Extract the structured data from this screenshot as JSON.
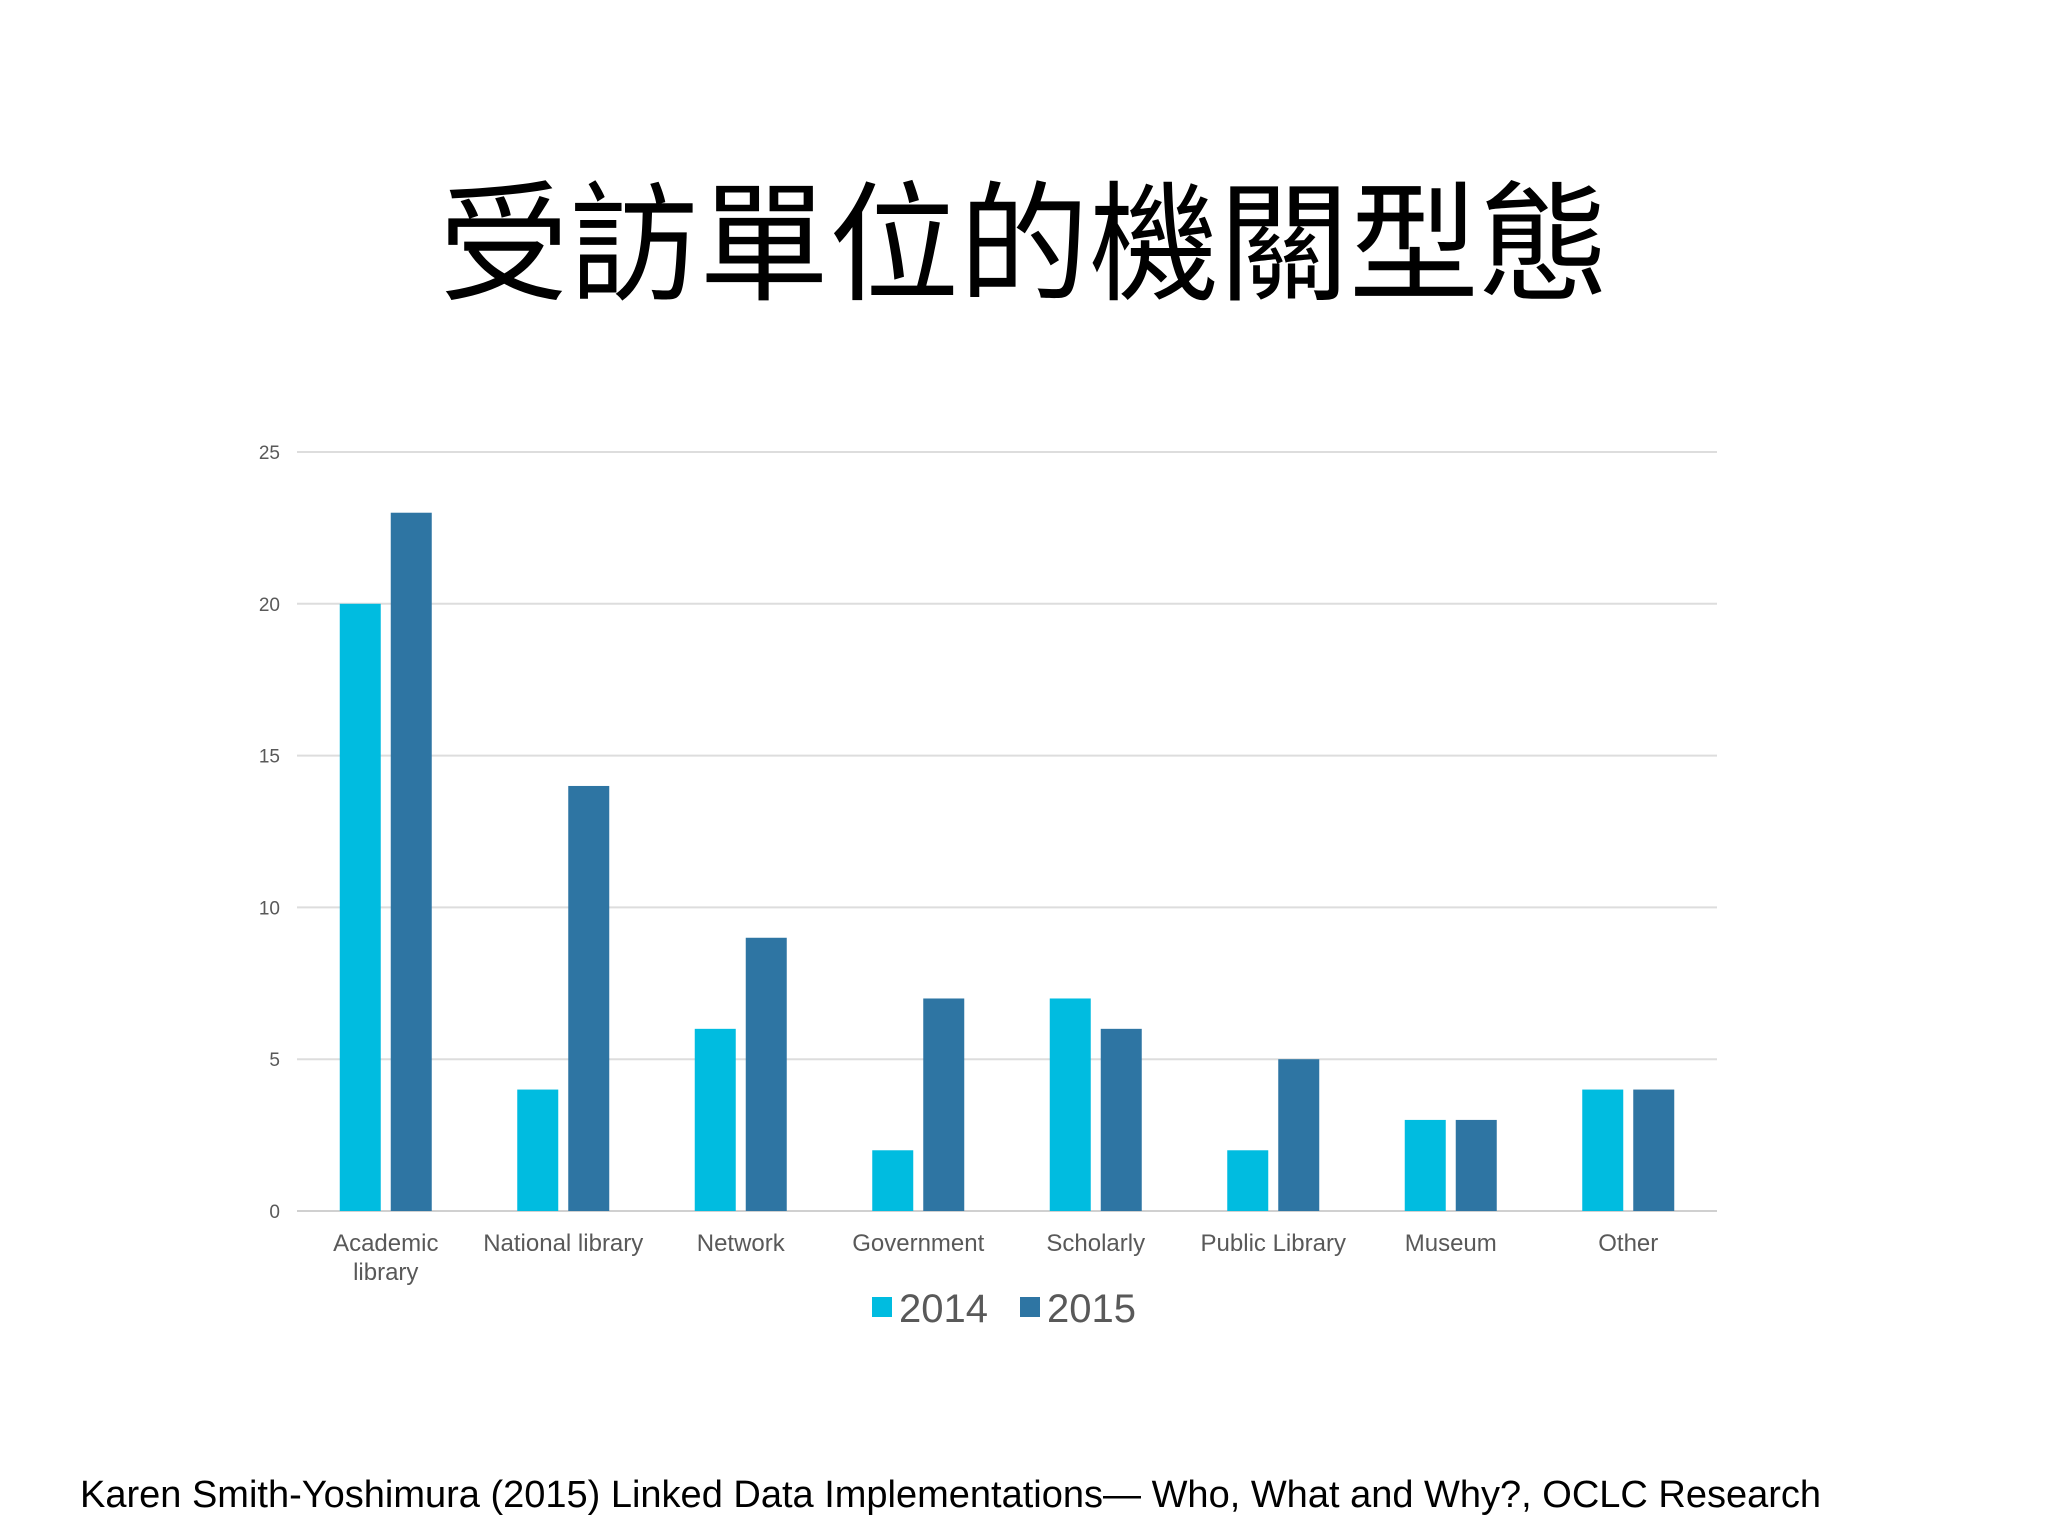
{
  "slide": {
    "title": "受訪單位的機關型態",
    "citation": "Karen Smith-Yoshimura (2015) Linked Data Implementations— Who, What and Why?, OCLC Research"
  },
  "chart_data": {
    "type": "bar",
    "categories": [
      [
        "Academic",
        "library"
      ],
      [
        "National library"
      ],
      [
        "Network"
      ],
      [
        "Government"
      ],
      [
        "Scholarly"
      ],
      [
        "Public Library"
      ],
      [
        "Museum"
      ],
      [
        "Other"
      ]
    ],
    "series": [
      {
        "name": "2014",
        "color": "#00BCE0",
        "values": [
          20,
          4,
          6,
          2,
          7,
          2,
          3,
          4
        ]
      },
      {
        "name": "2015",
        "color": "#2E75A3",
        "values": [
          23,
          14,
          9,
          7,
          6,
          5,
          3,
          4
        ]
      }
    ],
    "ylim": [
      0,
      25
    ],
    "yticks": [
      0,
      5,
      10,
      15,
      20,
      25
    ],
    "grid": true,
    "legend": "bottom-center",
    "xlabel": "",
    "ylabel": ""
  }
}
